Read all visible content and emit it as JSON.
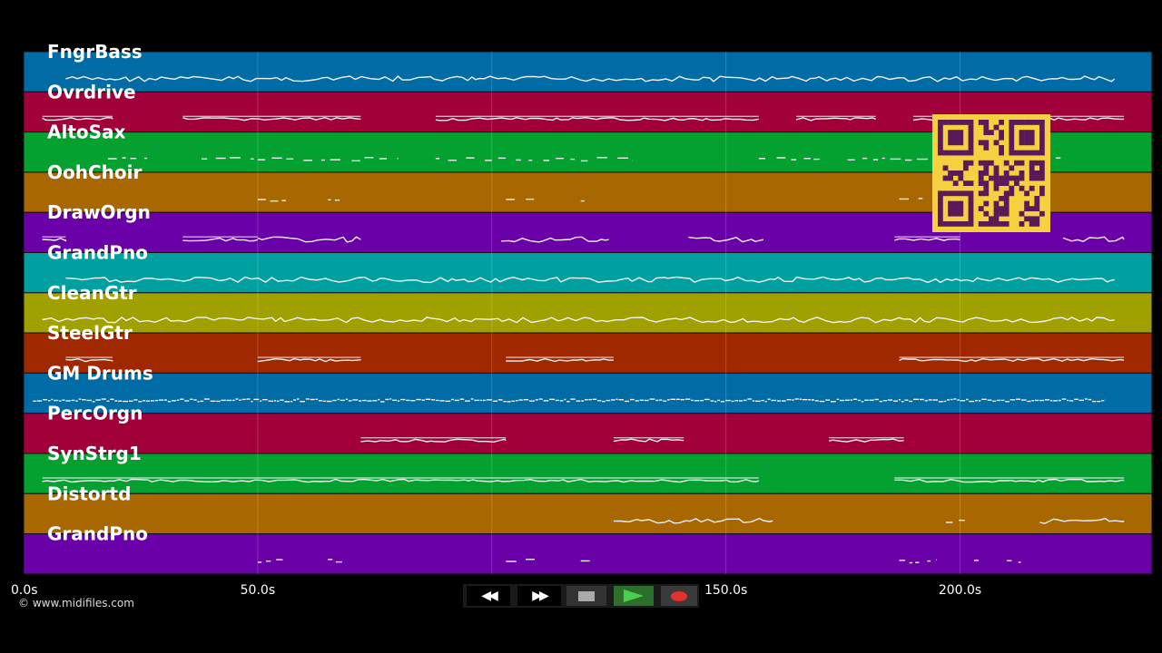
{
  "credit": "© www.midifiles.com",
  "timeline": {
    "duration": 241,
    "ticks": [
      {
        "value": 0,
        "label": "0.0s"
      },
      {
        "value": 50,
        "label": "50.0s"
      },
      {
        "value": 100,
        "label": "100.0s"
      },
      {
        "value": 150,
        "label": "150.0s"
      },
      {
        "value": 200,
        "label": "200.0s"
      }
    ]
  },
  "tracks": [
    {
      "name": "FngrBass",
      "color": "#006ba4",
      "segments": [
        [
          9,
          233,
          "wavy"
        ]
      ]
    },
    {
      "name": "Ovrdrive",
      "color": "#a2003b",
      "segments": [
        [
          4,
          19,
          "flat"
        ],
        [
          34,
          72,
          "flat"
        ],
        [
          88,
          157,
          "flat"
        ],
        [
          165,
          182,
          "flat"
        ],
        [
          190,
          235,
          "flat"
        ]
      ]
    },
    {
      "name": "AltoSax",
      "color": "#04a030",
      "segments": [
        [
          18,
          28,
          "dots"
        ],
        [
          38,
          80,
          "dots"
        ],
        [
          88,
          130,
          "dots"
        ],
        [
          157,
          170,
          "dots"
        ],
        [
          176,
          222,
          "dots"
        ]
      ]
    },
    {
      "name": "OohChoir",
      "color": "#a86700",
      "segments": [
        [
          50,
          56,
          "dots"
        ],
        [
          65,
          68,
          "dots"
        ],
        [
          103,
          109,
          "dots"
        ],
        [
          119,
          121,
          "dots"
        ],
        [
          187,
          192,
          "dots"
        ]
      ]
    },
    {
      "name": "DrawOrgn",
      "color": "#6a00a8",
      "segments": [
        [
          4,
          9,
          "flat"
        ],
        [
          34,
          50,
          "flat"
        ],
        [
          50,
          72,
          "wavy"
        ],
        [
          102,
          125,
          "wavy"
        ],
        [
          142,
          158,
          "wavy"
        ],
        [
          186,
          200,
          "flat"
        ],
        [
          222,
          235,
          "wavy"
        ]
      ]
    },
    {
      "name": "GrandPno",
      "color": "#00a0a0",
      "segments": [
        [
          9,
          233,
          "wavy"
        ]
      ]
    },
    {
      "name": "CleanGtr",
      "color": "#a0a000",
      "segments": [
        [
          4,
          233,
          "wavy"
        ]
      ]
    },
    {
      "name": "SteelGtr",
      "color": "#a02800",
      "segments": [
        [
          9,
          19,
          "flat"
        ],
        [
          50,
          72,
          "flat"
        ],
        [
          103,
          126,
          "flat"
        ],
        [
          187,
          235,
          "flat"
        ]
      ]
    },
    {
      "name": "GM Drums",
      "color": "#006ba4",
      "segments": [
        [
          2,
          231,
          "dense"
        ]
      ]
    },
    {
      "name": "PercOrgn",
      "color": "#a2003b",
      "segments": [
        [
          72,
          103,
          "flat"
        ],
        [
          126,
          141,
          "flat"
        ],
        [
          172,
          188,
          "flat"
        ]
      ]
    },
    {
      "name": "SynStrg1",
      "color": "#04a030",
      "segments": [
        [
          4,
          157,
          "flat"
        ],
        [
          186,
          235,
          "flat"
        ]
      ]
    },
    {
      "name": "Distortd",
      "color": "#a86700",
      "segments": [
        [
          126,
          160,
          "wavy"
        ],
        [
          197,
          201,
          "dots"
        ],
        [
          217,
          235,
          "wavy"
        ]
      ]
    },
    {
      "name": "GrandPno",
      "color": "#6a00a8",
      "segments": [
        [
          50,
          57,
          "dots"
        ],
        [
          65,
          68,
          "dots"
        ],
        [
          103,
          110,
          "dots"
        ],
        [
          119,
          121,
          "dots"
        ],
        [
          187,
          195,
          "dots"
        ],
        [
          203,
          206,
          "dots"
        ],
        [
          210,
          213,
          "dots"
        ]
      ]
    }
  ],
  "transport": {
    "rewind_label": "◀◀",
    "forward_label": "▶▶",
    "stop": "stop-icon",
    "play": "play-icon",
    "record": "record-icon"
  },
  "qr": "qr-code-icon"
}
